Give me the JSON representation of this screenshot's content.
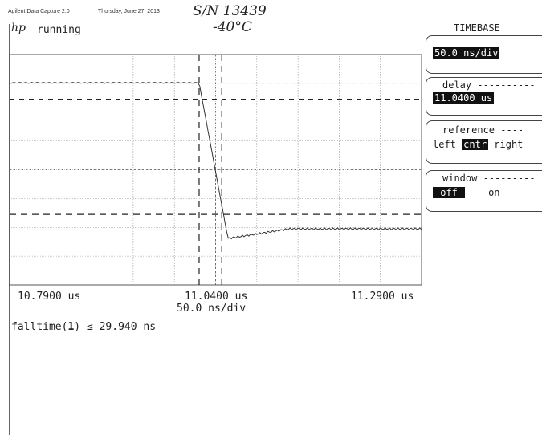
{
  "header": {
    "app_title": "Agilent Data Capture 2.0",
    "date": "Thursday, June 27, 2013",
    "serial_note": "S/N 13439",
    "temp_note": "-40°C"
  },
  "scope": {
    "logo": "hp",
    "status": "running",
    "axis": {
      "left_time": "10.7900 us",
      "center_time": "11.0400 us",
      "right_time": "11.2900 us",
      "time_per_div": "50.0 ns/div"
    },
    "measurement": {
      "name": "falltime(",
      "channel": "1",
      "close": ")",
      "relation": "≤",
      "value": "29.940 ns"
    }
  },
  "softkeys": {
    "timebase": {
      "title": "TIMEBASE",
      "value": "50.0 ns/div"
    },
    "delay": {
      "label": "delay",
      "value": "11.0400 us"
    },
    "reference": {
      "label": "reference",
      "left": "left",
      "center": "cntr",
      "right": "right",
      "selected": "cntr"
    },
    "window": {
      "label": "window",
      "off": "off",
      "on": "on",
      "selected": "off"
    }
  },
  "waveform": {
    "high_level": 1.0,
    "low_level": 0.0,
    "fall_start_div": 4.6,
    "fall_end_div": 5.3
  }
}
